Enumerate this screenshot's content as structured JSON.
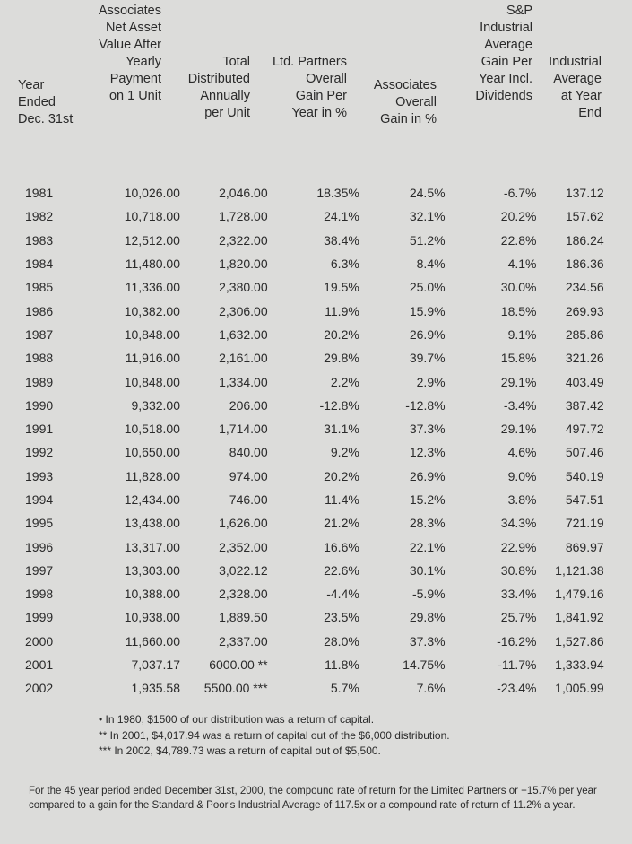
{
  "headers": {
    "year": [
      "Year",
      "Ended",
      "Dec. 31st"
    ],
    "nav": [
      "Associates",
      "Net Asset",
      "Value After",
      "Yearly",
      "Payment",
      "on 1 Unit"
    ],
    "distributed": [
      "Total",
      "Distributed",
      "Annually",
      "per Unit"
    ],
    "partners": [
      "Ltd. Partners",
      "Overall",
      "Gain Per",
      "Year in %"
    ],
    "associates": [
      "Associates",
      "Overall",
      "Gain in %"
    ],
    "sp_gain": [
      "S&P",
      "Industrial",
      "Average",
      "Gain Per",
      "Year Incl.",
      "Dividends"
    ],
    "ind_avg": [
      "Industrial",
      "Average",
      "at Year",
      "End"
    ]
  },
  "rows": [
    [
      "1981",
      "10,026.00",
      "2,046.00",
      "18.35%",
      "24.5%",
      "-6.7%",
      "137.12"
    ],
    [
      "1982",
      "10,718.00",
      "1,728.00",
      "24.1%",
      "32.1%",
      "20.2%",
      "157.62"
    ],
    [
      "1983",
      "12,512.00",
      "2,322.00",
      "38.4%",
      "51.2%",
      "22.8%",
      "186.24"
    ],
    [
      "1984",
      "11,480.00",
      "1,820.00",
      "6.3%",
      "8.4%",
      "4.1%",
      "186.36"
    ],
    [
      "1985",
      "11,336.00",
      "2,380.00",
      "19.5%",
      "25.0%",
      "30.0%",
      "234.56"
    ],
    [
      "1986",
      "10,382.00",
      "2,306.00",
      "11.9%",
      "15.9%",
      "18.5%",
      "269.93"
    ],
    [
      "1987",
      "10,848.00",
      "1,632.00",
      "20.2%",
      "26.9%",
      "9.1%",
      "285.86"
    ],
    [
      "1988",
      "11,916.00",
      "2,161.00",
      "29.8%",
      "39.7%",
      "15.8%",
      "321.26"
    ],
    [
      "1989",
      "10,848.00",
      "1,334.00",
      "2.2%",
      "2.9%",
      "29.1%",
      "403.49"
    ],
    [
      "1990",
      "9,332.00",
      "206.00",
      "-12.8%",
      "-12.8%",
      "-3.4%",
      "387.42"
    ],
    [
      "1991",
      "10,518.00",
      "1,714.00",
      "31.1%",
      "37.3%",
      "29.1%",
      "497.72"
    ],
    [
      "1992",
      "10,650.00",
      "840.00",
      "9.2%",
      "12.3%",
      "4.6%",
      "507.46"
    ],
    [
      "1993",
      "11,828.00",
      "974.00",
      "20.2%",
      "26.9%",
      "9.0%",
      "540.19"
    ],
    [
      "1994",
      "12,434.00",
      "746.00",
      "11.4%",
      "15.2%",
      "3.8%",
      "547.51"
    ],
    [
      "1995",
      "13,438.00",
      "1,626.00",
      "21.2%",
      "28.3%",
      "34.3%",
      "721.19"
    ],
    [
      "1996",
      "13,317.00",
      "2,352.00",
      "16.6%",
      "22.1%",
      "22.9%",
      "869.97"
    ],
    [
      "1997",
      "13,303.00",
      "3,022.12",
      "22.6%",
      "30.1%",
      "30.8%",
      "1,121.38"
    ],
    [
      "1998",
      "10,388.00",
      "2,328.00",
      "-4.4%",
      "-5.9%",
      "33.4%",
      "1,479.16"
    ],
    [
      "1999",
      "10,938.00",
      "1,889.50",
      "23.5%",
      "29.8%",
      "25.7%",
      "1,841.92"
    ],
    [
      "2000",
      "11,660.00",
      "2,337.00",
      "28.0%",
      "37.3%",
      "-16.2%",
      "1,527.86"
    ],
    [
      "2001",
      "7,037.17",
      "6000.00 **",
      "11.8%",
      "14.75%",
      "-11.7%",
      "1,333.94"
    ],
    [
      "2002",
      "1,935.58",
      "5500.00 ***",
      "5.7%",
      "7.6%",
      "-23.4%",
      "1,005.99"
    ]
  ],
  "notes": [
    "• In 1980, $1500 of our distribution was a return of capital.",
    "** In 2001, $4,017.94 was a return of capital out of the $6,000 distribution.",
    "*** In 2002, $4,789.73 was a return of capital out of $5,500."
  ],
  "footer": "For the 45 year period ended December 31st, 2000, the compound rate of return for the Limited Partners or +15.7% per year compared to a gain for the Standard & Poor's Industrial Average of 117.5x or a compound rate of return of 11.2% a year."
}
